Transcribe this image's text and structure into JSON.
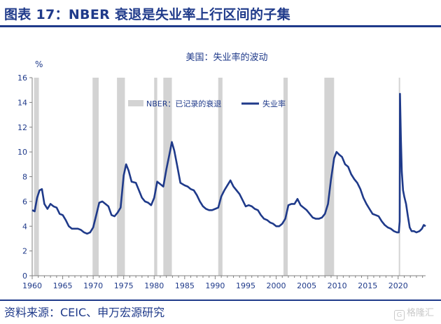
{
  "header": {
    "title": "图表 17：NBER 衰退是失业率上行区间的子集"
  },
  "footer": {
    "source": "资料来源：CEIC、申万宏源研究"
  },
  "watermark": {
    "text": "格隆汇"
  },
  "colors": {
    "brand": "#1f3a8a",
    "series": "#1f3a8a",
    "recession": "#d3d3d3",
    "axis": "#808080"
  },
  "chart_data": {
    "type": "line",
    "title": "美国：失业率的波动",
    "ylabel": "%",
    "xlabel": "",
    "xlim": [
      1960,
      2024.5
    ],
    "ylim": [
      0,
      16
    ],
    "xticks": [
      1960,
      1965,
      1970,
      1975,
      1980,
      1985,
      1990,
      1995,
      2000,
      2005,
      2010,
      2015,
      2020
    ],
    "yticks": [
      0,
      2,
      4,
      6,
      8,
      10,
      12,
      14,
      16
    ],
    "grid": false,
    "legend_position": "top-center",
    "legend": [
      {
        "label": "NBER：已记录的衰退",
        "kind": "band"
      },
      {
        "label": "失业率",
        "kind": "line"
      }
    ],
    "recessions": [
      [
        1960.3,
        1961.1
      ],
      [
        1969.9,
        1970.9
      ],
      [
        1973.9,
        1975.2
      ],
      [
        1980.0,
        1980.5
      ],
      [
        1981.5,
        1982.9
      ],
      [
        1990.5,
        1991.2
      ],
      [
        2001.2,
        2001.9
      ],
      [
        2007.9,
        2009.5
      ],
      [
        2020.1,
        2020.3
      ]
    ],
    "series": [
      {
        "name": "失业率",
        "points": [
          [
            1960.0,
            5.3
          ],
          [
            1960.4,
            5.2
          ],
          [
            1960.8,
            6.3
          ],
          [
            1961.2,
            6.9
          ],
          [
            1961.6,
            7.0
          ],
          [
            1962.0,
            5.8
          ],
          [
            1962.5,
            5.4
          ],
          [
            1963.0,
            5.8
          ],
          [
            1963.5,
            5.6
          ],
          [
            1964.0,
            5.5
          ],
          [
            1964.5,
            5.0
          ],
          [
            1965.0,
            4.9
          ],
          [
            1965.5,
            4.5
          ],
          [
            1966.0,
            4.0
          ],
          [
            1966.5,
            3.8
          ],
          [
            1967.0,
            3.8
          ],
          [
            1967.5,
            3.8
          ],
          [
            1968.0,
            3.7
          ],
          [
            1968.5,
            3.5
          ],
          [
            1969.0,
            3.4
          ],
          [
            1969.5,
            3.5
          ],
          [
            1970.0,
            3.9
          ],
          [
            1970.5,
            4.9
          ],
          [
            1971.0,
            5.9
          ],
          [
            1971.5,
            6.0
          ],
          [
            1972.0,
            5.8
          ],
          [
            1972.5,
            5.6
          ],
          [
            1973.0,
            4.9
          ],
          [
            1973.5,
            4.8
          ],
          [
            1974.0,
            5.1
          ],
          [
            1974.5,
            5.5
          ],
          [
            1975.0,
            8.1
          ],
          [
            1975.4,
            9.0
          ],
          [
            1975.8,
            8.5
          ],
          [
            1976.3,
            7.6
          ],
          [
            1977.0,
            7.5
          ],
          [
            1977.5,
            6.9
          ],
          [
            1978.0,
            6.3
          ],
          [
            1978.5,
            6.0
          ],
          [
            1979.0,
            5.9
          ],
          [
            1979.5,
            5.7
          ],
          [
            1980.0,
            6.3
          ],
          [
            1980.5,
            7.6
          ],
          [
            1981.0,
            7.4
          ],
          [
            1981.5,
            7.2
          ],
          [
            1982.0,
            8.6
          ],
          [
            1982.5,
            9.8
          ],
          [
            1982.9,
            10.8
          ],
          [
            1983.3,
            10.1
          ],
          [
            1983.8,
            8.8
          ],
          [
            1984.3,
            7.5
          ],
          [
            1985.0,
            7.3
          ],
          [
            1985.5,
            7.2
          ],
          [
            1986.0,
            7.0
          ],
          [
            1986.5,
            6.9
          ],
          [
            1987.0,
            6.5
          ],
          [
            1987.5,
            6.0
          ],
          [
            1988.0,
            5.6
          ],
          [
            1988.5,
            5.4
          ],
          [
            1989.0,
            5.3
          ],
          [
            1989.5,
            5.3
          ],
          [
            1990.0,
            5.4
          ],
          [
            1990.5,
            5.5
          ],
          [
            1991.0,
            6.4
          ],
          [
            1991.5,
            6.9
          ],
          [
            1992.0,
            7.3
          ],
          [
            1992.5,
            7.7
          ],
          [
            1993.0,
            7.2
          ],
          [
            1993.5,
            6.9
          ],
          [
            1994.0,
            6.6
          ],
          [
            1994.5,
            6.1
          ],
          [
            1995.0,
            5.6
          ],
          [
            1995.5,
            5.7
          ],
          [
            1996.0,
            5.6
          ],
          [
            1996.5,
            5.4
          ],
          [
            1997.0,
            5.3
          ],
          [
            1997.5,
            4.9
          ],
          [
            1998.0,
            4.6
          ],
          [
            1998.5,
            4.5
          ],
          [
            1999.0,
            4.3
          ],
          [
            1999.5,
            4.2
          ],
          [
            2000.0,
            4.0
          ],
          [
            2000.5,
            4.0
          ],
          [
            2001.0,
            4.2
          ],
          [
            2001.5,
            4.6
          ],
          [
            2002.0,
            5.7
          ],
          [
            2002.5,
            5.8
          ],
          [
            2003.0,
            5.8
          ],
          [
            2003.5,
            6.2
          ],
          [
            2004.0,
            5.7
          ],
          [
            2004.5,
            5.5
          ],
          [
            2005.0,
            5.3
          ],
          [
            2005.5,
            5.0
          ],
          [
            2006.0,
            4.7
          ],
          [
            2006.5,
            4.6
          ],
          [
            2007.0,
            4.6
          ],
          [
            2007.5,
            4.7
          ],
          [
            2008.0,
            5.0
          ],
          [
            2008.5,
            5.8
          ],
          [
            2009.0,
            7.8
          ],
          [
            2009.5,
            9.5
          ],
          [
            2009.9,
            10.0
          ],
          [
            2010.3,
            9.8
          ],
          [
            2010.8,
            9.6
          ],
          [
            2011.3,
            9.0
          ],
          [
            2011.8,
            8.8
          ],
          [
            2012.3,
            8.2
          ],
          [
            2012.8,
            7.8
          ],
          [
            2013.3,
            7.5
          ],
          [
            2013.8,
            7.0
          ],
          [
            2014.3,
            6.3
          ],
          [
            2014.8,
            5.8
          ],
          [
            2015.3,
            5.4
          ],
          [
            2015.8,
            5.0
          ],
          [
            2016.3,
            4.9
          ],
          [
            2016.8,
            4.8
          ],
          [
            2017.3,
            4.4
          ],
          [
            2017.8,
            4.1
          ],
          [
            2018.3,
            3.9
          ],
          [
            2018.8,
            3.8
          ],
          [
            2019.3,
            3.6
          ],
          [
            2019.8,
            3.5
          ],
          [
            2020.1,
            3.5
          ],
          [
            2020.25,
            4.4
          ],
          [
            2020.3,
            14.7
          ],
          [
            2020.45,
            11.1
          ],
          [
            2020.6,
            8.4
          ],
          [
            2020.8,
            6.9
          ],
          [
            2021.0,
            6.4
          ],
          [
            2021.3,
            5.8
          ],
          [
            2021.6,
            4.8
          ],
          [
            2021.9,
            3.9
          ],
          [
            2022.2,
            3.6
          ],
          [
            2022.6,
            3.6
          ],
          [
            2023.0,
            3.5
          ],
          [
            2023.5,
            3.6
          ],
          [
            2023.9,
            3.8
          ],
          [
            2024.2,
            4.1
          ],
          [
            2024.5,
            4.0
          ]
        ]
      }
    ]
  }
}
